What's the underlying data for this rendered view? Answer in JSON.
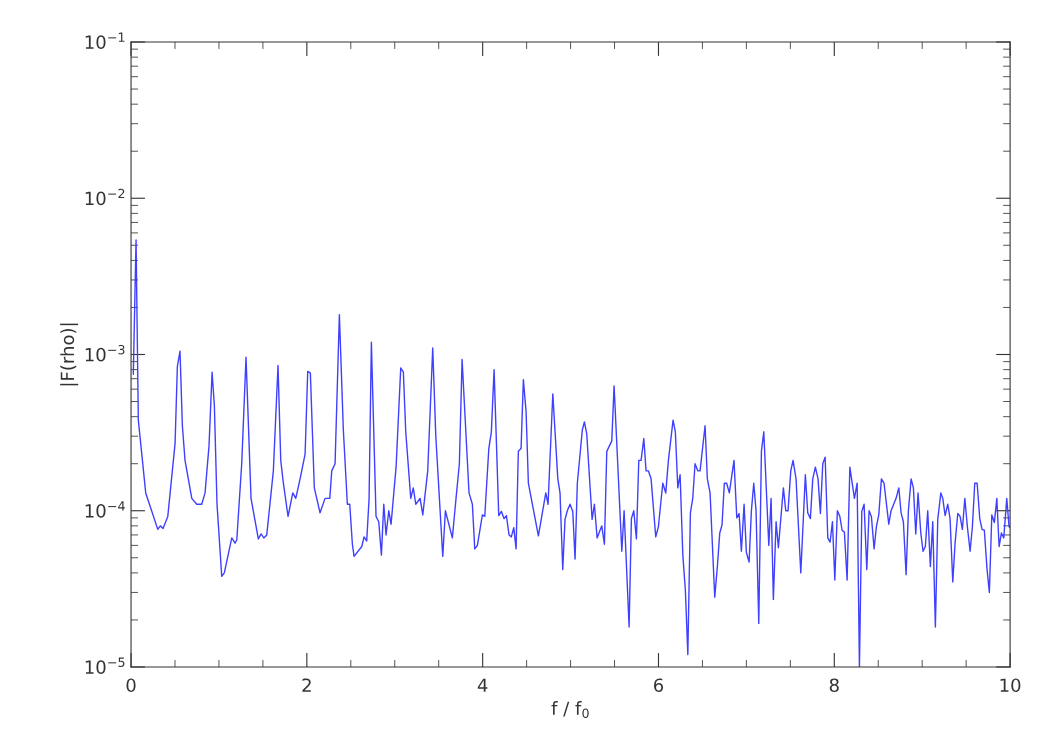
{
  "chart_data": {
    "type": "line",
    "xlabel": "f / f$_{0}$",
    "ylabel": "|F(rho)|",
    "log": "y",
    "xlim": [
      0,
      10
    ],
    "ylim": [
      1e-05,
      0.1
    ],
    "xticks": [
      0,
      2,
      4,
      6,
      8,
      10
    ],
    "yticks": [
      {
        "value": 1e-05,
        "label": "10$^{−5}$"
      },
      {
        "value": 0.0001,
        "label": "10$^{−4}$"
      },
      {
        "value": 0.001,
        "label": "10$^{−3}$"
      },
      {
        "value": 0.01,
        "label": "10$^{−2}$"
      },
      {
        "value": 0.1,
        "label": "10$^{−1}$"
      }
    ],
    "x": [
      0.026,
      0.057,
      0.083,
      0.167,
      0.304,
      0.333,
      0.364,
      0.418,
      0.501,
      0.527,
      0.557,
      0.584,
      0.614,
      0.691,
      0.747,
      0.804,
      0.842,
      0.887,
      0.922,
      0.948,
      0.978,
      1.032,
      1.061,
      1.146,
      1.183,
      1.203,
      1.259,
      1.308,
      1.365,
      1.448,
      1.479,
      1.51,
      1.544,
      1.619,
      1.672,
      1.703,
      1.733,
      1.786,
      1.84,
      1.874,
      1.923,
      1.98,
      2.01,
      2.04,
      2.085,
      2.15,
      2.207,
      2.261,
      2.283,
      2.321,
      2.37,
      2.415,
      2.461,
      2.488,
      2.518,
      2.537,
      2.625,
      2.651,
      2.681,
      2.708,
      2.734,
      2.787,
      2.818,
      2.848,
      2.875,
      2.901,
      2.932,
      2.958,
      3.015,
      3.068,
      3.098,
      3.125,
      3.182,
      3.211,
      3.239,
      3.288,
      3.319,
      3.375,
      3.432,
      3.467,
      3.546,
      3.576,
      3.655,
      3.697,
      3.735,
      3.766,
      3.845,
      3.883,
      3.91,
      3.94,
      3.997,
      4.024,
      4.07,
      4.099,
      4.13,
      4.183,
      4.213,
      4.244,
      4.27,
      4.3,
      4.326,
      4.354,
      4.38,
      4.406,
      4.437,
      4.463,
      4.494,
      4.52,
      4.634,
      4.718,
      4.744,
      4.798,
      4.855,
      4.88,
      4.911,
      4.937,
      4.963,
      4.994,
      5.025,
      5.051,
      5.077,
      5.134,
      5.157,
      5.184,
      5.245,
      5.271,
      5.302,
      5.355,
      5.385,
      5.412,
      5.469,
      5.495,
      5.583,
      5.609,
      5.666,
      5.692,
      5.719,
      5.749,
      5.776,
      5.802,
      5.833,
      5.859,
      5.885,
      5.916,
      5.969,
      5.999,
      6.049,
      6.083,
      6.113,
      6.166,
      6.192,
      6.22,
      6.246,
      6.277,
      6.306,
      6.334,
      6.363,
      6.39,
      6.416,
      6.447,
      6.473,
      6.53,
      6.556,
      6.587,
      6.64,
      6.67,
      6.697,
      6.723,
      6.749,
      6.776,
      6.806,
      6.859,
      6.891,
      6.917,
      6.943,
      6.974,
      7.0,
      7.031,
      7.057,
      7.084,
      7.11,
      7.141,
      7.171,
      7.198,
      7.255,
      7.281,
      7.307,
      7.338,
      7.364,
      7.421,
      7.448,
      7.474,
      7.505,
      7.531,
      7.565,
      7.619,
      7.671,
      7.698,
      7.728,
      7.755,
      7.785,
      7.815,
      7.842,
      7.869,
      7.896,
      7.926,
      7.952,
      7.979,
      8.006,
      8.035,
      8.063,
      8.089,
      8.115,
      8.146,
      8.177,
      8.229,
      8.26,
      8.286,
      8.313,
      8.339,
      8.37,
      8.396,
      8.422,
      8.453,
      8.479,
      8.506,
      8.536,
      8.566,
      8.62,
      8.646,
      8.703,
      8.734,
      8.76,
      8.786,
      8.817,
      8.843,
      8.874,
      8.9,
      8.927,
      8.953,
      8.984,
      9.01,
      9.036,
      9.063,
      9.093,
      9.12,
      9.15,
      9.177,
      9.212,
      9.234,
      9.261,
      9.291,
      9.317,
      9.348,
      9.374,
      9.405,
      9.431,
      9.457,
      9.485,
      9.514,
      9.545,
      9.571,
      9.598,
      9.625,
      9.655,
      9.681,
      9.707,
      9.738,
      9.764,
      9.792,
      9.821,
      9.849,
      9.875,
      9.901,
      9.928,
      9.962,
      9.988,
      10.0
    ],
    "series": [
      {
        "color": "#3f3fff",
        "values": [
          0.00075,
          0.0054,
          0.00038,
          0.00013,
          7.6e-05,
          8e-05,
          7.7e-05,
          9.2e-05,
          0.00027,
          0.00084,
          0.00105,
          0.00035,
          0.00021,
          0.00012,
          0.00011,
          0.00011,
          0.00013,
          0.00026,
          0.00077,
          0.00047,
          0.00011,
          3.8e-05,
          4e-05,
          6.7e-05,
          6.2e-05,
          6.5e-05,
          0.0002,
          0.00096,
          0.00012,
          6.6e-05,
          7.1e-05,
          6.7e-05,
          7e-05,
          0.00018,
          0.00085,
          0.00021,
          0.00015,
          9.2e-05,
          0.00013,
          0.00012,
          0.00016,
          0.00023,
          0.00078,
          0.00076,
          0.00014,
          9.7e-05,
          0.00012,
          0.00012,
          0.00018,
          0.0002,
          0.0018,
          0.00033,
          0.00011,
          0.00011,
          6.1e-05,
          5.1e-05,
          5.9e-05,
          6.8e-05,
          6.4e-05,
          0.00012,
          0.0012,
          9.2e-05,
          8.5e-05,
          5.2e-05,
          0.00011,
          7e-05,
          0.0001,
          8.2e-05,
          0.00019,
          0.00082,
          0.00077,
          0.00032,
          0.00012,
          0.00014,
          0.00011,
          0.00012,
          9.4e-05,
          0.00018,
          0.0011,
          0.0003,
          5.1e-05,
          0.0001,
          6.7e-05,
          0.00012,
          0.0002,
          0.00093,
          0.00013,
          0.00011,
          5.7e-05,
          6e-05,
          9.4e-05,
          9.2e-05,
          0.00025,
          0.00032,
          0.0008,
          9.3e-05,
          9.9e-05,
          8.9e-05,
          9.3e-05,
          7e-05,
          6.8e-05,
          7.8e-05,
          5.7e-05,
          0.00024,
          0.00025,
          0.00069,
          0.00043,
          0.00015,
          6.9e-05,
          0.00013,
          0.00011,
          0.00056,
          0.00016,
          0.00013,
          4.2e-05,
          8.8e-05,
          0.0001,
          0.00011,
          9.9e-05,
          4.9e-05,
          0.00015,
          0.00033,
          0.00037,
          0.00031,
          8.8e-05,
          0.00011,
          6.7e-05,
          8e-05,
          6.1e-05,
          0.00024,
          0.00028,
          0.00063,
          5.5e-05,
          0.0001,
          1.8e-05,
          8.9e-05,
          0.0001,
          6.6e-05,
          0.00021,
          0.00021,
          0.00029,
          0.00018,
          0.00018,
          0.00016,
          6.8e-05,
          7.9e-05,
          0.00015,
          0.00013,
          0.00021,
          0.00038,
          0.00032,
          0.00014,
          0.00017,
          5.2e-05,
          3.1e-05,
          1.2e-05,
          9.7e-05,
          0.00012,
          0.0002,
          0.00018,
          0.00018,
          0.00035,
          0.00016,
          0.00013,
          2.8e-05,
          4.4e-05,
          7.2e-05,
          8.1e-05,
          0.00015,
          0.00015,
          0.00013,
          0.00021,
          9e-05,
          9.6e-05,
          5.5e-05,
          0.00011,
          5.4e-05,
          4.7e-05,
          0.0001,
          0.00015,
          0.0001,
          1.9e-05,
          0.00024,
          0.00032,
          6e-05,
          0.00012,
          2.7e-05,
          8.5e-05,
          5.8e-05,
          0.00014,
          0.0001,
          0.0001,
          0.00018,
          0.00021,
          0.00016,
          4e-05,
          0.00017,
          9.7e-05,
          8.9e-05,
          0.00016,
          0.00019,
          0.00016,
          9.6e-05,
          0.0002,
          0.00022,
          6.7e-05,
          6.3e-05,
          8.5e-05,
          3.6e-05,
          0.0001,
          9.2e-05,
          7.5e-05,
          7.3e-05,
          3.6e-05,
          0.00019,
          0.00012,
          0.00015,
          1e-05,
          9.9e-05,
          0.00011,
          4.2e-05,
          0.0001,
          9.2e-05,
          5.7e-05,
          7.9e-05,
          9.4e-05,
          0.00016,
          0.00015,
          8.2e-05,
          0.0001,
          0.00012,
          0.00014,
          9.7e-05,
          8.5e-05,
          3.9e-05,
          0.0001,
          0.00016,
          0.00014,
          7.1e-05,
          0.00013,
          7.2e-05,
          5.5e-05,
          5.9e-05,
          0.0001,
          4.4e-05,
          8.5e-05,
          1.8e-05,
          8.8e-05,
          0.00013,
          0.00012,
          9.3e-05,
          0.00011,
          8.9e-05,
          3.5e-05,
          6.2e-05,
          9.6e-05,
          9.2e-05,
          7.6e-05,
          0.00012,
          7.9e-05,
          5.5e-05,
          7.9e-05,
          0.00015,
          0.00015,
          8.9e-05,
          7.6e-05,
          7.5e-05,
          4.2e-05,
          3e-05,
          9.4e-05,
          8.4e-05,
          0.00012,
          5.9e-05,
          7.2e-05,
          6.7e-05,
          0.00012,
          7.9e-05,
          7.8e-05
        ]
      }
    ]
  }
}
